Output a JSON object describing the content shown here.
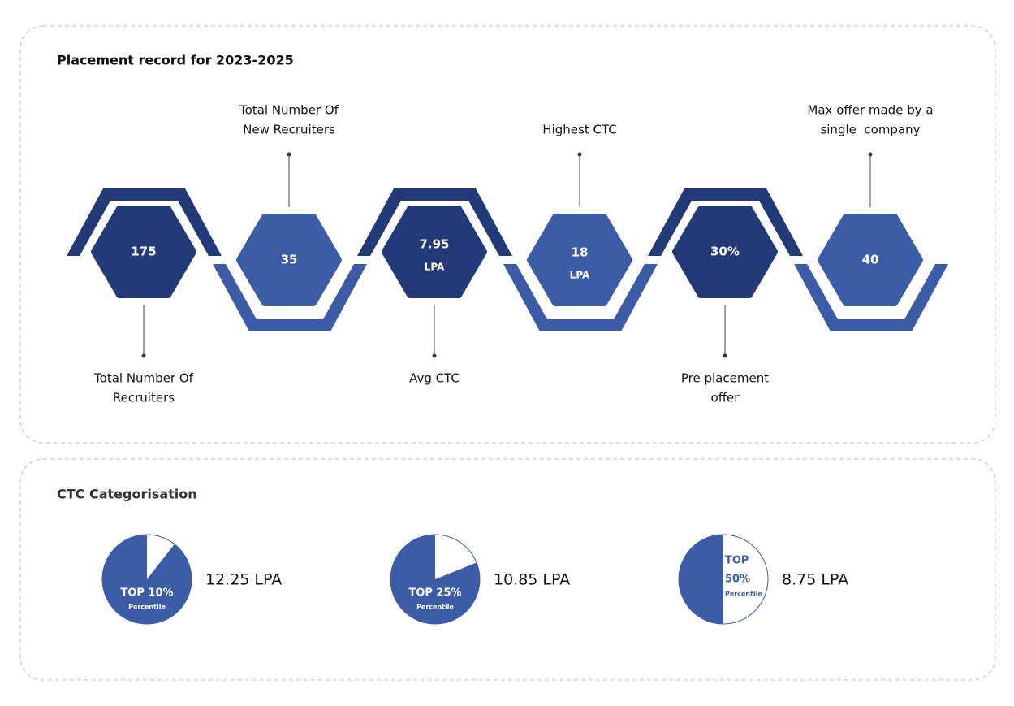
{
  "placement": {
    "title": "Placement record for 2023-2025",
    "stats": [
      {
        "value_lines": [
          "175"
        ],
        "label_lines": [
          "Total Number Of",
          "Recruiters"
        ]
      },
      {
        "value_lines": [
          "35"
        ],
        "label_lines": [
          "Total Number Of",
          "New Recruiters"
        ]
      },
      {
        "value_lines": [
          "7.95",
          "LPA"
        ],
        "label_lines": [
          "Avg CTC"
        ]
      },
      {
        "value_lines": [
          "18",
          "LPA"
        ],
        "label_lines": [
          "Highest CTC"
        ]
      },
      {
        "value_lines": [
          "30%"
        ],
        "label_lines": [
          "Pre placement",
          "offer"
        ]
      },
      {
        "value_lines": [
          "40"
        ],
        "label_lines": [
          "Max offer made by a",
          "single  company"
        ]
      }
    ]
  },
  "ctc": {
    "title": "CTC Categorisation",
    "categories": [
      {
        "top_lines": [
          "TOP 10%"
        ],
        "sub": "Percentile",
        "amount": "12.25 LPA"
      },
      {
        "top_lines": [
          "TOP 25%"
        ],
        "sub": "Percentile",
        "amount": "10.85 LPA"
      },
      {
        "top_lines": [
          "TOP",
          "50%"
        ],
        "sub": "Percentile",
        "amount": "8.75 LPA"
      }
    ]
  }
}
